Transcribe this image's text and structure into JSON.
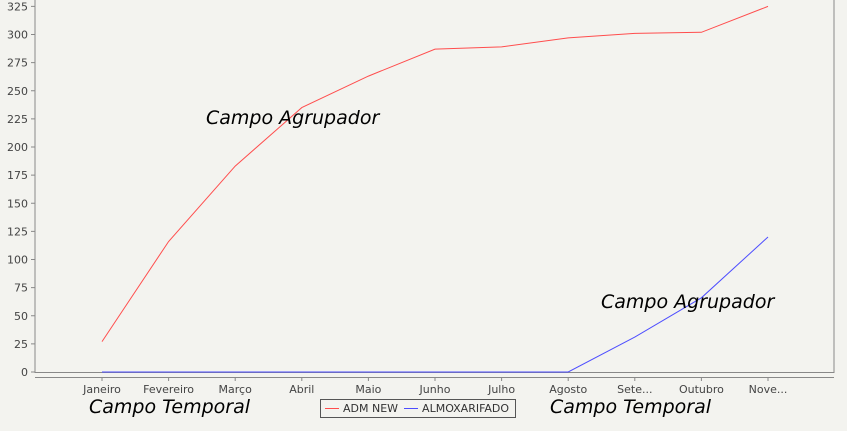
{
  "chart_data": {
    "type": "line",
    "categories": [
      "Janeiro",
      "Fevereiro",
      "Março",
      "Abril",
      "Maio",
      "Junho",
      "Julho",
      "Agosto",
      "Sete...",
      "Outubro",
      "Nove..."
    ],
    "series": [
      {
        "name": "ADM NEW",
        "color": "#ff4d4d",
        "values": [
          27,
          116,
          183,
          235,
          263,
          287,
          289,
          297,
          301,
          302,
          325
        ]
      },
      {
        "name": "ALMOXARIFADO",
        "color": "#4d4dff",
        "values": [
          0,
          0,
          0,
          0,
          0,
          0,
          0,
          0,
          31,
          66,
          120
        ]
      }
    ],
    "yticks": [
      0,
      25,
      50,
      75,
      100,
      125,
      150,
      175,
      200,
      225,
      250,
      275,
      300,
      325
    ],
    "ylim": [
      0,
      340
    ],
    "legend_position": "bottom",
    "grid": false
  },
  "annotations": {
    "agrupador_1": "Campo Agrupador",
    "agrupador_2": "Campo Agrupador",
    "temporal_1": "Campo Temporal",
    "temporal_2": "Campo Temporal"
  }
}
